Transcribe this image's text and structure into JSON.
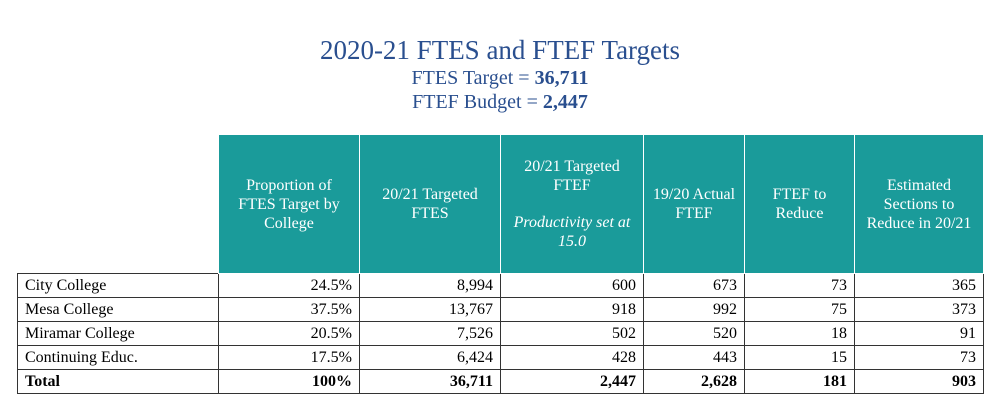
{
  "title": {
    "main": "2020-21 FTES and FTEF Targets",
    "ftes_label": "FTES Target = ",
    "ftes_value": "36,711",
    "ftef_label": "FTEF Budget = ",
    "ftef_value": "2,447"
  },
  "table": {
    "headers": [
      {
        "text": "Proportion of FTES Target by College",
        "note": ""
      },
      {
        "text": "20/21 Targeted FTES",
        "note": ""
      },
      {
        "text": "20/21 Targeted FTEF",
        "note": "Productivity set at 15.0"
      },
      {
        "text": "19/20 Actual FTEF",
        "note": ""
      },
      {
        "text": "FTEF to Reduce",
        "note": ""
      },
      {
        "text": "Estimated Sections to Reduce in 20/21",
        "note": ""
      }
    ],
    "rows": [
      {
        "name": "City College",
        "values": [
          "24.5%",
          "8,994",
          "600",
          "673",
          "73",
          "365"
        ]
      },
      {
        "name": "Mesa College",
        "values": [
          "37.5%",
          "13,767",
          "918",
          "992",
          "75",
          "373"
        ]
      },
      {
        "name": "Miramar College",
        "values": [
          "20.5%",
          "7,526",
          "502",
          "520",
          "18",
          "91"
        ]
      },
      {
        "name": "Continuing Educ.",
        "values": [
          "17.5%",
          "6,424",
          "428",
          "443",
          "15",
          "73"
        ]
      }
    ],
    "total": {
      "name": "Total",
      "values": [
        "100%",
        "36,711",
        "2,447",
        "2,628",
        "181",
        "903"
      ]
    }
  }
}
